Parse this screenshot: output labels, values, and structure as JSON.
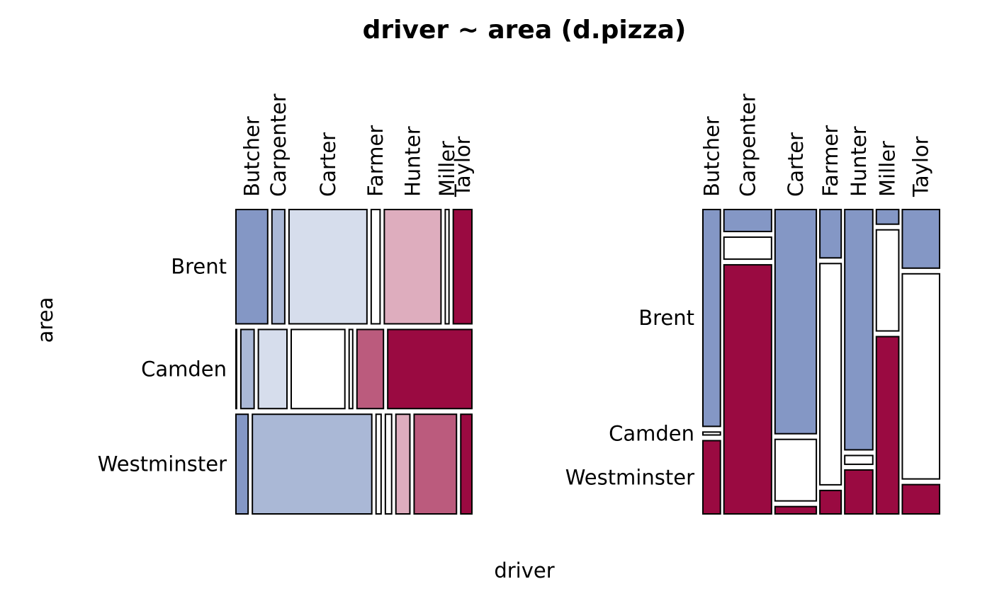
{
  "title": "driver ~ area (d.pizza)",
  "xlabel": "driver",
  "ylabel": "area",
  "colors": {
    "dark_blue": "#8497C5",
    "mid_blue": "#AAB8D6",
    "light_blue": "#D6DDEC",
    "white": "#FFFFFF",
    "light_red": "#DEADBE",
    "mid_red": "#BB5B7D",
    "dark_red": "#9A0A41"
  },
  "chart_data": [
    {
      "type": "mosaic",
      "title": "",
      "x_variable": "driver",
      "y_variable": "area",
      "categories": [
        "Butcher",
        "Carpenter",
        "Carter",
        "Farmer",
        "Hunter",
        "Miller",
        "Taylor"
      ],
      "rows": [
        "Brent",
        "Camden",
        "Westminster"
      ],
      "row_proportions": [
        0.39,
        0.27,
        0.34
      ],
      "cells": [
        [
          0.136,
          0.055,
          0.334,
          0.038,
          0.243,
          0.016,
          0.08
        ],
        [
          0.003,
          0.063,
          0.136,
          0.255,
          0.017,
          0.126,
          0.4
        ],
        [
          0.06,
          0.589,
          0.025,
          0.031,
          0.069,
          0.209,
          0.055
        ]
      ],
      "cell_shades": [
        [
          "dark_blue",
          "mid_blue",
          "light_blue",
          "white",
          "light_red",
          "white",
          "dark_red"
        ],
        [
          "dark_blue",
          "mid_blue",
          "light_blue",
          "white",
          "white",
          "mid_red",
          "dark_red"
        ],
        [
          "dark_blue",
          "mid_blue",
          "white",
          "white",
          "light_red",
          "mid_red",
          "dark_red"
        ]
      ]
    },
    {
      "type": "mosaic",
      "title": "",
      "x_variable": "driver",
      "y_variable": "area",
      "categories": [
        "Butcher",
        "Carpenter",
        "Carter",
        "Farmer",
        "Hunter",
        "Miller",
        "Taylor"
      ],
      "rows": [
        "Brent",
        "Camden",
        "Westminster"
      ],
      "column_proportions": [
        0.078,
        0.212,
        0.184,
        0.095,
        0.125,
        0.1,
        0.166
      ],
      "cells": [
        [
          0.74,
          0.075,
          0.765,
          0.165,
          0.82,
          0.05,
          0.2
        ],
        [
          0.01,
          0.075,
          0.21,
          0.755,
          0.03,
          0.345,
          0.7
        ],
        [
          0.25,
          0.85,
          0.025,
          0.08,
          0.15,
          0.605,
          0.1
        ]
      ],
      "cell_shades": [
        [
          "dark_blue",
          "dark_blue",
          "dark_blue",
          "dark_blue",
          "dark_blue",
          "dark_blue",
          "dark_blue"
        ],
        [
          "white",
          "white",
          "white",
          "white",
          "white",
          "white",
          "white"
        ],
        [
          "dark_red",
          "dark_red",
          "dark_red",
          "dark_red",
          "dark_red",
          "dark_red",
          "dark_red"
        ]
      ]
    }
  ]
}
